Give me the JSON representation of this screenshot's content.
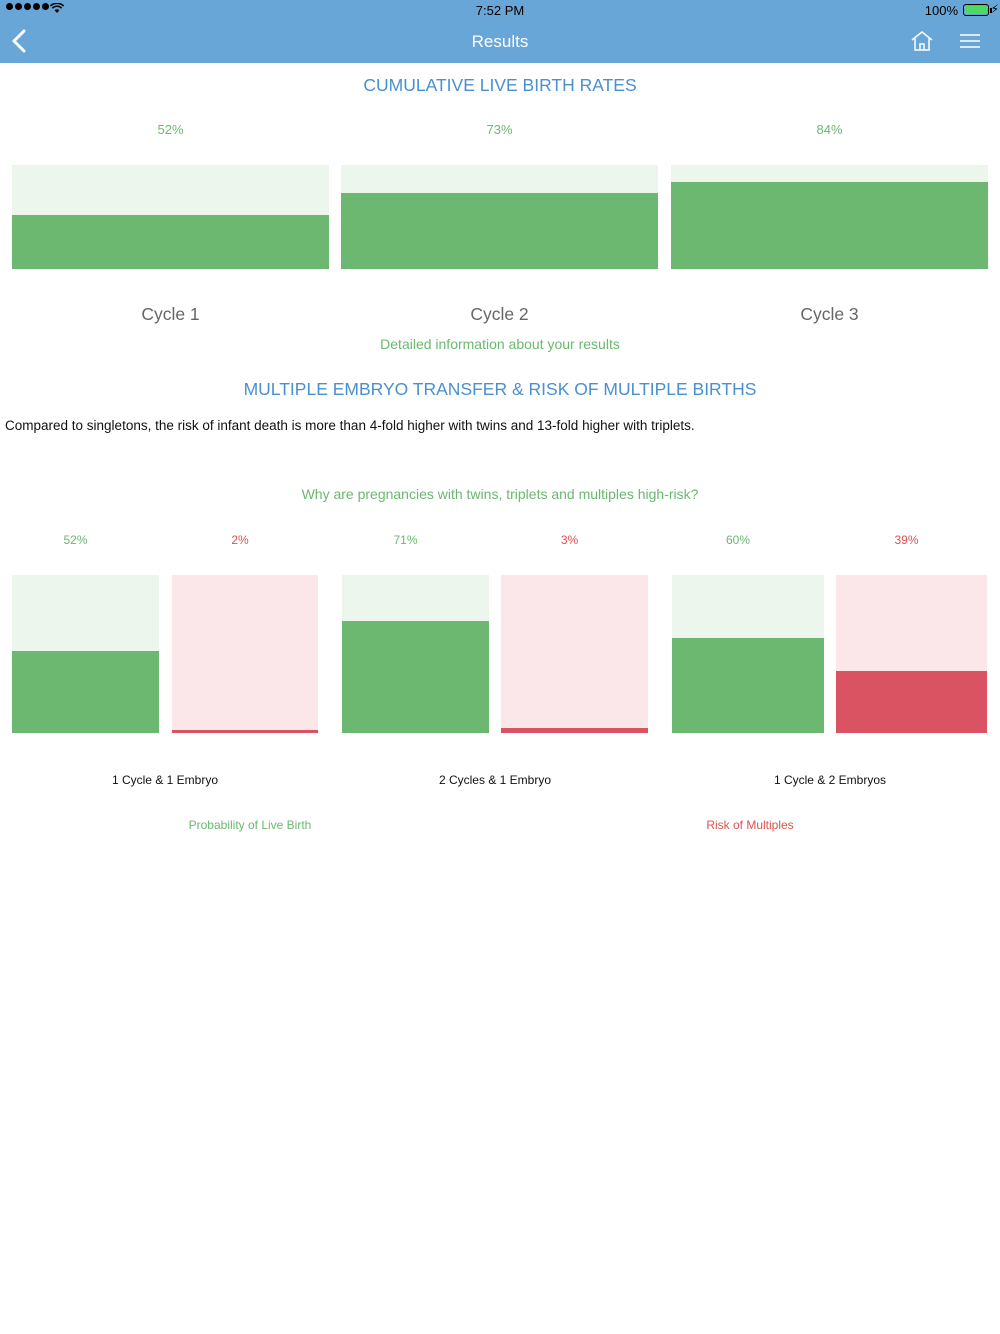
{
  "status": {
    "time": "7:52 PM",
    "battery": "100%"
  },
  "nav": {
    "title": "Results"
  },
  "section1": {
    "title": "CUMULATIVE LIVE BIRTH RATES",
    "link": "Detailed information about your results"
  },
  "section2": {
    "title": "MULTIPLE EMBRYO TRANSFER & RISK OF MULTIPLE BIRTHS",
    "paragraph": "Compared to singletons, the risk of infant death is more than 4-fold higher with twins and 13-fold higher with triplets.",
    "link": "Why are pregnancies with twins, triplets and multiples high-risk?"
  },
  "chart_data": [
    {
      "type": "bar",
      "categories": [
        "Cycle 1",
        "Cycle 2",
        "Cycle 3"
      ],
      "values": [
        52,
        73,
        84
      ],
      "value_labels": [
        "52%",
        "73%",
        "84%"
      ],
      "ylim": [
        0,
        100
      ],
      "colors": {
        "fill": "#6cb871",
        "track": "#edf6ec"
      }
    },
    {
      "type": "bar",
      "categories": [
        "1 Cycle & 1 Embryo",
        "2 Cycles & 1 Embryo",
        "1 Cycle & 2 Embryos"
      ],
      "series": [
        {
          "name": "Probability of Live Birth",
          "values": [
            52,
            71,
            60
          ],
          "value_labels": [
            "52%",
            "71%",
            "60%"
          ],
          "color": "#6cb871",
          "track": "#edf6ec"
        },
        {
          "name": "Risk of Multiples",
          "values": [
            2,
            3,
            39
          ],
          "value_labels": [
            "2%",
            "3%",
            "39%"
          ],
          "color": "#da5363",
          "track": "#fbe6e9"
        }
      ],
      "ylim": [
        0,
        100
      ]
    }
  ]
}
